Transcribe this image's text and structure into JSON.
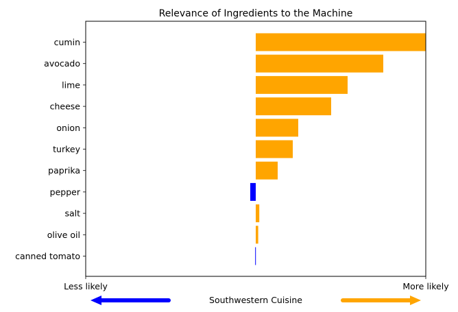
{
  "chart_data": {
    "type": "bar",
    "orientation": "horizontal",
    "title": "Relevance of Ingredients to the Machine",
    "categories": [
      "cumin",
      "avocado",
      "lime",
      "cheese",
      "onion",
      "turkey",
      "paprika",
      "pepper",
      "salt",
      "olive oil",
      "canned tomato"
    ],
    "values": [
      0.62,
      0.465,
      0.335,
      0.275,
      0.155,
      0.135,
      0.08,
      -0.02,
      0.013,
      0.009,
      -0.002
    ],
    "xlim": [
      -0.62,
      0.62
    ],
    "grid": false,
    "x_tick_labels_visible": false,
    "colors": {
      "positive": "#ffa500",
      "negative": "#0000ff"
    },
    "xaxis_annotations": {
      "left_label": "Less likely",
      "right_label": "More likely",
      "center_label": "Southwestern Cuisine"
    }
  }
}
